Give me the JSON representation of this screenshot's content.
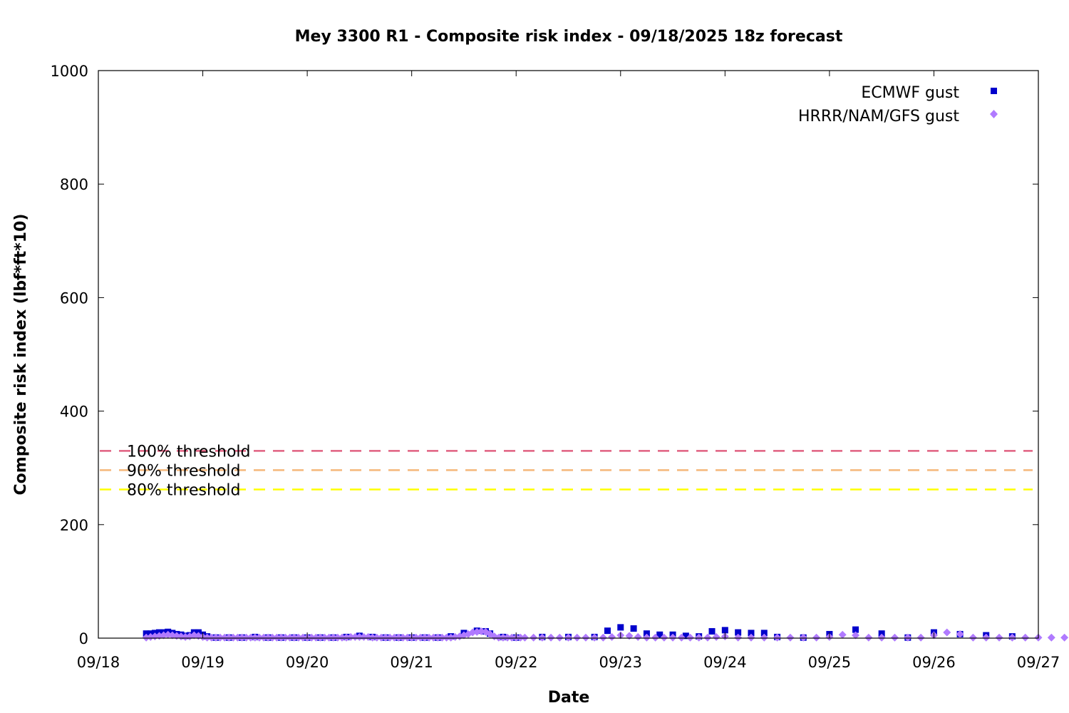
{
  "chart_data": {
    "type": "scatter",
    "title": "Mey 3300 R1 - Composite risk index - 09/18/2025 18z forecast",
    "xlabel": "Date",
    "ylabel": "Composite risk index (lbf*ft*10)",
    "xlim": [
      "2025-09-18T00:00",
      "2025-09-27T00:00"
    ],
    "ylim": [
      0,
      1000
    ],
    "x_ticks": [
      "09/18",
      "09/19",
      "09/20",
      "09/21",
      "09/22",
      "09/23",
      "09/24",
      "09/25",
      "09/26",
      "09/27"
    ],
    "y_ticks": [
      "0",
      "200",
      "400",
      "600",
      "800",
      "1000"
    ],
    "grid": false,
    "legend_position": "top-right",
    "thresholds": [
      {
        "label": "100% threshold",
        "value": 330,
        "color": "#e06080"
      },
      {
        "label": "90% threshold",
        "value": 296,
        "color": "#f5b87a"
      },
      {
        "label": "80% threshold",
        "value": 262,
        "color": "#ffff00"
      }
    ],
    "series": [
      {
        "name": "ECMWF gust",
        "marker": "square",
        "color": "#0000cc",
        "points": [
          [
            "2025-09-18T11:00",
            8
          ],
          [
            "2025-09-18T12:00",
            8
          ],
          [
            "2025-09-18T13:00",
            9
          ],
          [
            "2025-09-18T14:00",
            10
          ],
          [
            "2025-09-18T15:00",
            10
          ],
          [
            "2025-09-18T16:00",
            11
          ],
          [
            "2025-09-18T17:00",
            9
          ],
          [
            "2025-09-18T18:00",
            7
          ],
          [
            "2025-09-18T19:00",
            6
          ],
          [
            "2025-09-18T20:00",
            4
          ],
          [
            "2025-09-18T21:00",
            5
          ],
          [
            "2025-09-18T22:00",
            10
          ],
          [
            "2025-09-18T23:00",
            10
          ],
          [
            "2025-09-19T00:00",
            6
          ],
          [
            "2025-09-19T01:00",
            3
          ],
          [
            "2025-09-19T03:00",
            1
          ],
          [
            "2025-09-19T06:00",
            1
          ],
          [
            "2025-09-19T09:00",
            1
          ],
          [
            "2025-09-19T12:00",
            2
          ],
          [
            "2025-09-19T15:00",
            1
          ],
          [
            "2025-09-19T18:00",
            1
          ],
          [
            "2025-09-19T21:00",
            1
          ],
          [
            "2025-09-20T00:00",
            1
          ],
          [
            "2025-09-20T03:00",
            1
          ],
          [
            "2025-09-20T06:00",
            1
          ],
          [
            "2025-09-20T09:00",
            2
          ],
          [
            "2025-09-20T12:00",
            4
          ],
          [
            "2025-09-20T15:00",
            2
          ],
          [
            "2025-09-20T18:00",
            1
          ],
          [
            "2025-09-20T21:00",
            1
          ],
          [
            "2025-09-21T00:00",
            1
          ],
          [
            "2025-09-21T03:00",
            1
          ],
          [
            "2025-09-21T06:00",
            1
          ],
          [
            "2025-09-21T09:00",
            3
          ],
          [
            "2025-09-21T12:00",
            9
          ],
          [
            "2025-09-21T15:00",
            13
          ],
          [
            "2025-09-21T17:00",
            12
          ],
          [
            "2025-09-21T18:00",
            8
          ],
          [
            "2025-09-21T21:00",
            2
          ],
          [
            "2025-09-22T00:00",
            1
          ],
          [
            "2025-09-22T06:00",
            2
          ],
          [
            "2025-09-22T12:00",
            2
          ],
          [
            "2025-09-22T18:00",
            2
          ],
          [
            "2025-09-22T21:00",
            13
          ],
          [
            "2025-09-23T00:00",
            19
          ],
          [
            "2025-09-23T03:00",
            17
          ],
          [
            "2025-09-23T06:00",
            8
          ],
          [
            "2025-09-23T09:00",
            6
          ],
          [
            "2025-09-23T12:00",
            6
          ],
          [
            "2025-09-23T15:00",
            4
          ],
          [
            "2025-09-23T18:00",
            3
          ],
          [
            "2025-09-23T21:00",
            12
          ],
          [
            "2025-09-24T00:00",
            14
          ],
          [
            "2025-09-24T03:00",
            10
          ],
          [
            "2025-09-24T06:00",
            9
          ],
          [
            "2025-09-24T09:00",
            9
          ],
          [
            "2025-09-24T12:00",
            2
          ],
          [
            "2025-09-24T18:00",
            1
          ],
          [
            "2025-09-25T00:00",
            7
          ],
          [
            "2025-09-25T06:00",
            15
          ],
          [
            "2025-09-25T12:00",
            8
          ],
          [
            "2025-09-25T18:00",
            1
          ],
          [
            "2025-09-26T00:00",
            10
          ],
          [
            "2025-09-26T06:00",
            7
          ],
          [
            "2025-09-26T12:00",
            5
          ],
          [
            "2025-09-26T18:00",
            3
          ]
        ]
      },
      {
        "name": "HRRR/NAM/GFS gust",
        "marker": "diamond",
        "color": "#b07aff",
        "points": [
          [
            "2025-09-18T11:00",
            1
          ],
          [
            "2025-09-18T12:00",
            2
          ],
          [
            "2025-09-18T13:00",
            3
          ],
          [
            "2025-09-18T14:00",
            4
          ],
          [
            "2025-09-18T15:00",
            5
          ],
          [
            "2025-09-18T16:00",
            6
          ],
          [
            "2025-09-18T17:00",
            5
          ],
          [
            "2025-09-18T18:00",
            4
          ],
          [
            "2025-09-18T19:00",
            3
          ],
          [
            "2025-09-18T20:00",
            2
          ],
          [
            "2025-09-18T21:00",
            3
          ],
          [
            "2025-09-18T22:00",
            5
          ],
          [
            "2025-09-18T23:00",
            4
          ],
          [
            "2025-09-19T00:00",
            2
          ],
          [
            "2025-09-19T01:00",
            1
          ],
          [
            "2025-09-19T02:00",
            1
          ],
          [
            "2025-09-19T03:00",
            1
          ],
          [
            "2025-09-19T04:00",
            1
          ],
          [
            "2025-09-19T05:00",
            1
          ],
          [
            "2025-09-19T06:00",
            1
          ],
          [
            "2025-09-19T07:00",
            1
          ],
          [
            "2025-09-19T08:00",
            1
          ],
          [
            "2025-09-19T09:00",
            1
          ],
          [
            "2025-09-19T10:00",
            1
          ],
          [
            "2025-09-19T11:00",
            1
          ],
          [
            "2025-09-19T12:00",
            1
          ],
          [
            "2025-09-19T13:00",
            1
          ],
          [
            "2025-09-19T14:00",
            1
          ],
          [
            "2025-09-19T15:00",
            1
          ],
          [
            "2025-09-19T16:00",
            1
          ],
          [
            "2025-09-19T17:00",
            1
          ],
          [
            "2025-09-19T18:00",
            1
          ],
          [
            "2025-09-19T19:00",
            1
          ],
          [
            "2025-09-19T20:00",
            1
          ],
          [
            "2025-09-19T21:00",
            1
          ],
          [
            "2025-09-19T22:00",
            1
          ],
          [
            "2025-09-19T23:00",
            1
          ],
          [
            "2025-09-20T00:00",
            1
          ],
          [
            "2025-09-20T01:00",
            1
          ],
          [
            "2025-09-20T02:00",
            1
          ],
          [
            "2025-09-20T03:00",
            1
          ],
          [
            "2025-09-20T04:00",
            1
          ],
          [
            "2025-09-20T05:00",
            1
          ],
          [
            "2025-09-20T06:00",
            1
          ],
          [
            "2025-09-20T07:00",
            1
          ],
          [
            "2025-09-20T08:00",
            1
          ],
          [
            "2025-09-20T09:00",
            1
          ],
          [
            "2025-09-20T10:00",
            2
          ],
          [
            "2025-09-20T11:00",
            2
          ],
          [
            "2025-09-20T12:00",
            2
          ],
          [
            "2025-09-20T13:00",
            2
          ],
          [
            "2025-09-20T14:00",
            2
          ],
          [
            "2025-09-20T15:00",
            1
          ],
          [
            "2025-09-20T16:00",
            1
          ],
          [
            "2025-09-20T17:00",
            1
          ],
          [
            "2025-09-20T18:00",
            1
          ],
          [
            "2025-09-20T19:00",
            1
          ],
          [
            "2025-09-20T20:00",
            1
          ],
          [
            "2025-09-20T21:00",
            1
          ],
          [
            "2025-09-20T22:00",
            1
          ],
          [
            "2025-09-20T23:00",
            1
          ],
          [
            "2025-09-21T00:00",
            1
          ],
          [
            "2025-09-21T01:00",
            1
          ],
          [
            "2025-09-21T02:00",
            1
          ],
          [
            "2025-09-21T03:00",
            1
          ],
          [
            "2025-09-21T04:00",
            1
          ],
          [
            "2025-09-21T05:00",
            1
          ],
          [
            "2025-09-21T06:00",
            1
          ],
          [
            "2025-09-21T07:00",
            1
          ],
          [
            "2025-09-21T08:00",
            1
          ],
          [
            "2025-09-21T09:00",
            1
          ],
          [
            "2025-09-21T10:00",
            2
          ],
          [
            "2025-09-21T11:00",
            3
          ],
          [
            "2025-09-21T12:00",
            5
          ],
          [
            "2025-09-21T13:00",
            7
          ],
          [
            "2025-09-21T14:00",
            10
          ],
          [
            "2025-09-21T15:00",
            11
          ],
          [
            "2025-09-21T16:00",
            12
          ],
          [
            "2025-09-21T17:00",
            11
          ],
          [
            "2025-09-21T18:00",
            7
          ],
          [
            "2025-09-21T19:00",
            3
          ],
          [
            "2025-09-21T20:00",
            1
          ],
          [
            "2025-09-21T21:00",
            1
          ],
          [
            "2025-09-21T22:00",
            1
          ],
          [
            "2025-09-21T23:00",
            1
          ],
          [
            "2025-09-22T00:00",
            1
          ],
          [
            "2025-09-22T01:00",
            1
          ],
          [
            "2025-09-22T02:00",
            1
          ],
          [
            "2025-09-22T04:00",
            1
          ],
          [
            "2025-09-22T06:00",
            1
          ],
          [
            "2025-09-22T08:00",
            1
          ],
          [
            "2025-09-22T10:00",
            1
          ],
          [
            "2025-09-22T12:00",
            1
          ],
          [
            "2025-09-22T14:00",
            1
          ],
          [
            "2025-09-22T16:00",
            1
          ],
          [
            "2025-09-22T18:00",
            1
          ],
          [
            "2025-09-22T20:00",
            1
          ],
          [
            "2025-09-22T22:00",
            2
          ],
          [
            "2025-09-23T00:00",
            5
          ],
          [
            "2025-09-23T02:00",
            4
          ],
          [
            "2025-09-23T04:00",
            2
          ],
          [
            "2025-09-23T06:00",
            1
          ],
          [
            "2025-09-23T08:00",
            1
          ],
          [
            "2025-09-23T10:00",
            1
          ],
          [
            "2025-09-23T12:00",
            1
          ],
          [
            "2025-09-23T14:00",
            1
          ],
          [
            "2025-09-23T16:00",
            1
          ],
          [
            "2025-09-23T18:00",
            1
          ],
          [
            "2025-09-23T20:00",
            1
          ],
          [
            "2025-09-23T22:00",
            2
          ],
          [
            "2025-09-24T00:00",
            3
          ],
          [
            "2025-09-24T03:00",
            1
          ],
          [
            "2025-09-24T06:00",
            1
          ],
          [
            "2025-09-24T09:00",
            1
          ],
          [
            "2025-09-24T12:00",
            1
          ],
          [
            "2025-09-24T15:00",
            1
          ],
          [
            "2025-09-24T18:00",
            1
          ],
          [
            "2025-09-24T21:00",
            1
          ],
          [
            "2025-09-25T00:00",
            2
          ],
          [
            "2025-09-25T03:00",
            6
          ],
          [
            "2025-09-25T06:00",
            5
          ],
          [
            "2025-09-25T09:00",
            1
          ],
          [
            "2025-09-25T12:00",
            1
          ],
          [
            "2025-09-25T15:00",
            1
          ],
          [
            "2025-09-25T18:00",
            1
          ],
          [
            "2025-09-25T21:00",
            1
          ],
          [
            "2025-09-26T00:00",
            5
          ],
          [
            "2025-09-26T03:00",
            10
          ],
          [
            "2025-09-26T06:00",
            7
          ],
          [
            "2025-09-26T09:00",
            1
          ],
          [
            "2025-09-26T12:00",
            1
          ],
          [
            "2025-09-26T15:00",
            1
          ],
          [
            "2025-09-26T18:00",
            1
          ],
          [
            "2025-09-26T21:00",
            1
          ],
          [
            "2025-09-27T00:00",
            1
          ],
          [
            "2025-09-27T03:00",
            1
          ],
          [
            "2025-09-27T06:00",
            1
          ]
        ]
      }
    ]
  }
}
